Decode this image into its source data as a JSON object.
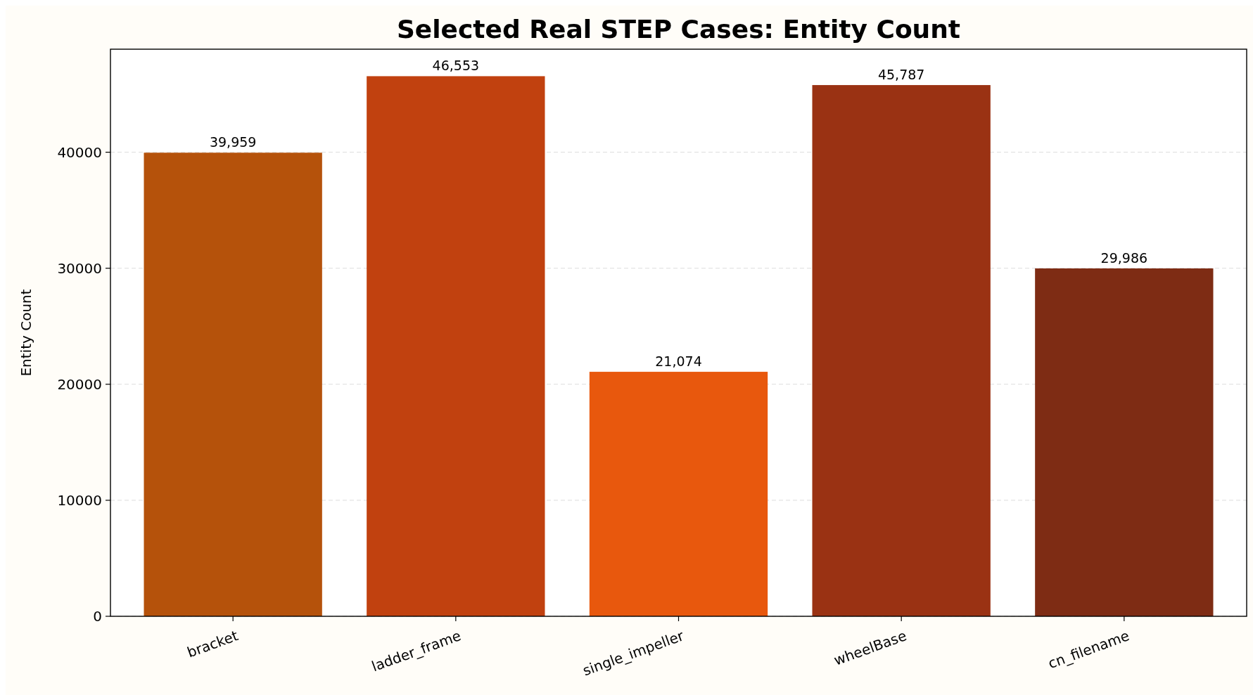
{
  "chart_data": {
    "type": "bar",
    "title": "Selected Real STEP Cases: Entity Count",
    "ylabel": "Entity Count",
    "categories": [
      "bracket",
      "ladder_frame",
      "single_impeller",
      "wheelBase",
      "cn_filename"
    ],
    "values": [
      39959,
      46553,
      21074,
      45787,
      29986
    ],
    "colors": [
      "#b5520b",
      "#c1410f",
      "#e8580d",
      "#9a3213",
      "#7e2c14"
    ],
    "value_labels": [
      "39,959",
      "46,553",
      "21,074",
      "45,787",
      "29,986"
    ],
    "ylim": [
      0,
      48880
    ],
    "yticks": [
      0,
      10000,
      20000,
      30000,
      40000
    ],
    "grid": "y"
  }
}
